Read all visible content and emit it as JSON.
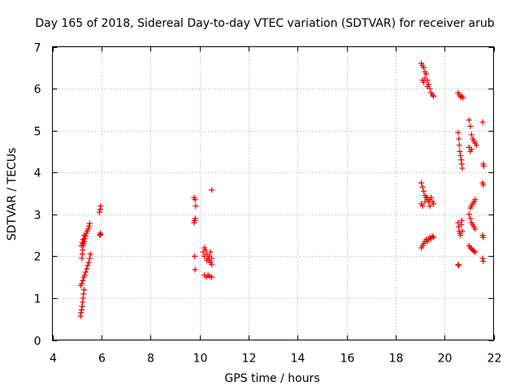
{
  "chart_data": {
    "type": "scatter",
    "title": "Day 165 of 2018, Sidereal Day-to-day VTEC variation (SDTVAR) for receiver arub",
    "xlabel": "GPS time / hours",
    "ylabel": "SDTVAR / TECUs",
    "xlim": [
      4,
      22
    ],
    "ylim": [
      0,
      7
    ],
    "x_ticks": [
      4,
      6,
      8,
      10,
      12,
      14,
      16,
      18,
      20,
      22
    ],
    "y_ticks": [
      0,
      1,
      2,
      3,
      4,
      5,
      6,
      7
    ],
    "x_tick_labels": [
      "4",
      "6",
      "8",
      "10",
      "12",
      "14",
      "16",
      "18",
      "20",
      "22"
    ],
    "y_tick_labels": [
      "0",
      "1",
      "2",
      "3",
      "4",
      "5",
      "6",
      "7"
    ],
    "grid": true,
    "marker": "+",
    "series_color": "#ee0000",
    "series": [
      {
        "name": "SDTVAR",
        "points": [
          [
            5.15,
            0.57
          ],
          [
            5.17,
            0.65
          ],
          [
            5.19,
            0.72
          ],
          [
            5.21,
            0.8
          ],
          [
            5.23,
            0.9
          ],
          [
            5.25,
            1.0
          ],
          [
            5.27,
            1.1
          ],
          [
            5.29,
            1.2
          ],
          [
            5.16,
            1.3
          ],
          [
            5.2,
            1.35
          ],
          [
            5.24,
            1.42
          ],
          [
            5.28,
            1.5
          ],
          [
            5.32,
            1.55
          ],
          [
            5.36,
            1.62
          ],
          [
            5.4,
            1.7
          ],
          [
            5.44,
            1.78
          ],
          [
            5.48,
            1.85
          ],
          [
            5.52,
            1.95
          ],
          [
            5.55,
            2.05
          ],
          [
            5.2,
            1.95
          ],
          [
            5.22,
            2.05
          ],
          [
            5.24,
            2.15
          ],
          [
            5.26,
            2.25
          ],
          [
            5.28,
            2.3
          ],
          [
            5.3,
            2.35
          ],
          [
            5.32,
            2.42
          ],
          [
            5.35,
            2.48
          ],
          [
            5.38,
            2.55
          ],
          [
            5.42,
            2.6
          ],
          [
            5.46,
            2.65
          ],
          [
            5.5,
            2.72
          ],
          [
            5.52,
            2.78
          ],
          [
            5.18,
            2.25
          ],
          [
            5.22,
            2.32
          ],
          [
            5.25,
            2.4
          ],
          [
            5.3,
            2.5
          ],
          [
            5.93,
            2.5
          ],
          [
            5.95,
            2.55
          ],
          [
            5.97,
            2.52
          ],
          [
            5.92,
            3.05
          ],
          [
            5.95,
            3.12
          ],
          [
            5.97,
            3.2
          ],
          [
            9.78,
            2.8
          ],
          [
            9.8,
            2.85
          ],
          [
            9.83,
            2.9
          ],
          [
            9.78,
            3.4
          ],
          [
            9.82,
            3.35
          ],
          [
            9.85,
            3.2
          ],
          [
            9.8,
            2.0
          ],
          [
            9.82,
            1.68
          ],
          [
            10.15,
            2.1
          ],
          [
            10.2,
            2.2
          ],
          [
            10.25,
            2.15
          ],
          [
            10.3,
            2.05
          ],
          [
            10.35,
            1.95
          ],
          [
            10.4,
            1.9
          ],
          [
            10.45,
            1.85
          ],
          [
            10.5,
            1.8
          ],
          [
            10.2,
            2.0
          ],
          [
            10.3,
            1.9
          ],
          [
            10.4,
            2.0
          ],
          [
            10.45,
            2.1
          ],
          [
            10.5,
            1.95
          ],
          [
            10.2,
            1.55
          ],
          [
            10.28,
            1.5
          ],
          [
            10.35,
            1.55
          ],
          [
            10.42,
            1.52
          ],
          [
            10.5,
            1.5
          ],
          [
            10.5,
            3.58
          ],
          [
            19.05,
            6.6
          ],
          [
            19.1,
            6.55
          ],
          [
            19.15,
            6.5
          ],
          [
            19.2,
            6.4
          ],
          [
            19.25,
            6.35
          ],
          [
            19.3,
            6.2
          ],
          [
            19.35,
            6.1
          ],
          [
            19.4,
            6.0
          ],
          [
            19.45,
            5.9
          ],
          [
            19.5,
            5.85
          ],
          [
            19.55,
            5.82
          ],
          [
            19.1,
            6.2
          ],
          [
            19.15,
            6.15
          ],
          [
            19.2,
            6.25
          ],
          [
            19.3,
            6.05
          ],
          [
            19.05,
            3.75
          ],
          [
            19.1,
            3.65
          ],
          [
            19.15,
            3.55
          ],
          [
            19.2,
            3.45
          ],
          [
            19.25,
            3.4
          ],
          [
            19.3,
            3.35
          ],
          [
            19.35,
            3.3
          ],
          [
            19.4,
            3.35
          ],
          [
            19.45,
            3.4
          ],
          [
            19.5,
            3.3
          ],
          [
            19.55,
            3.25
          ],
          [
            19.05,
            3.25
          ],
          [
            19.1,
            3.2
          ],
          [
            19.2,
            3.3
          ],
          [
            19.3,
            3.4
          ],
          [
            19.4,
            3.2
          ],
          [
            19.05,
            2.2
          ],
          [
            19.1,
            2.25
          ],
          [
            19.15,
            2.3
          ],
          [
            19.2,
            2.35
          ],
          [
            19.25,
            2.4
          ],
          [
            19.3,
            2.35
          ],
          [
            19.35,
            2.4
          ],
          [
            19.4,
            2.45
          ],
          [
            19.45,
            2.42
          ],
          [
            19.5,
            2.48
          ],
          [
            19.55,
            2.45
          ],
          [
            20.55,
            5.9
          ],
          [
            20.6,
            5.85
          ],
          [
            20.65,
            5.8
          ],
          [
            20.7,
            5.82
          ],
          [
            20.75,
            5.78
          ],
          [
            20.55,
            4.95
          ],
          [
            20.58,
            4.8
          ],
          [
            20.6,
            4.65
          ],
          [
            20.62,
            4.5
          ],
          [
            20.65,
            4.4
          ],
          [
            20.68,
            4.3
          ],
          [
            20.7,
            4.2
          ],
          [
            20.72,
            4.1
          ],
          [
            20.55,
            2.8
          ],
          [
            20.58,
            2.7
          ],
          [
            20.6,
            2.6
          ],
          [
            20.63,
            2.55
          ],
          [
            20.65,
            2.5
          ],
          [
            20.68,
            2.75
          ],
          [
            20.7,
            2.85
          ],
          [
            20.72,
            2.6
          ],
          [
            20.55,
            1.8
          ],
          [
            20.57,
            1.78
          ],
          [
            21.0,
            5.25
          ],
          [
            21.05,
            5.1
          ],
          [
            21.1,
            4.9
          ],
          [
            21.15,
            4.8
          ],
          [
            21.2,
            4.75
          ],
          [
            21.25,
            4.7
          ],
          [
            21.3,
            4.65
          ],
          [
            21.0,
            4.6
          ],
          [
            21.05,
            4.5
          ],
          [
            21.1,
            4.55
          ],
          [
            21.0,
            3.0
          ],
          [
            21.05,
            2.9
          ],
          [
            21.1,
            2.8
          ],
          [
            21.15,
            2.75
          ],
          [
            21.2,
            2.7
          ],
          [
            21.25,
            2.65
          ],
          [
            21.05,
            3.15
          ],
          [
            21.1,
            3.2
          ],
          [
            21.15,
            3.25
          ],
          [
            21.2,
            3.3
          ],
          [
            21.25,
            3.35
          ],
          [
            21.0,
            2.25
          ],
          [
            21.05,
            2.2
          ],
          [
            21.1,
            2.18
          ],
          [
            21.15,
            2.15
          ],
          [
            21.2,
            2.12
          ],
          [
            21.25,
            2.1
          ],
          [
            21.55,
            5.2
          ],
          [
            21.58,
            4.2
          ],
          [
            21.6,
            4.15
          ],
          [
            21.55,
            3.75
          ],
          [
            21.58,
            3.7
          ],
          [
            21.55,
            2.5
          ],
          [
            21.58,
            2.45
          ],
          [
            21.55,
            1.95
          ],
          [
            21.58,
            1.88
          ]
        ]
      }
    ]
  }
}
